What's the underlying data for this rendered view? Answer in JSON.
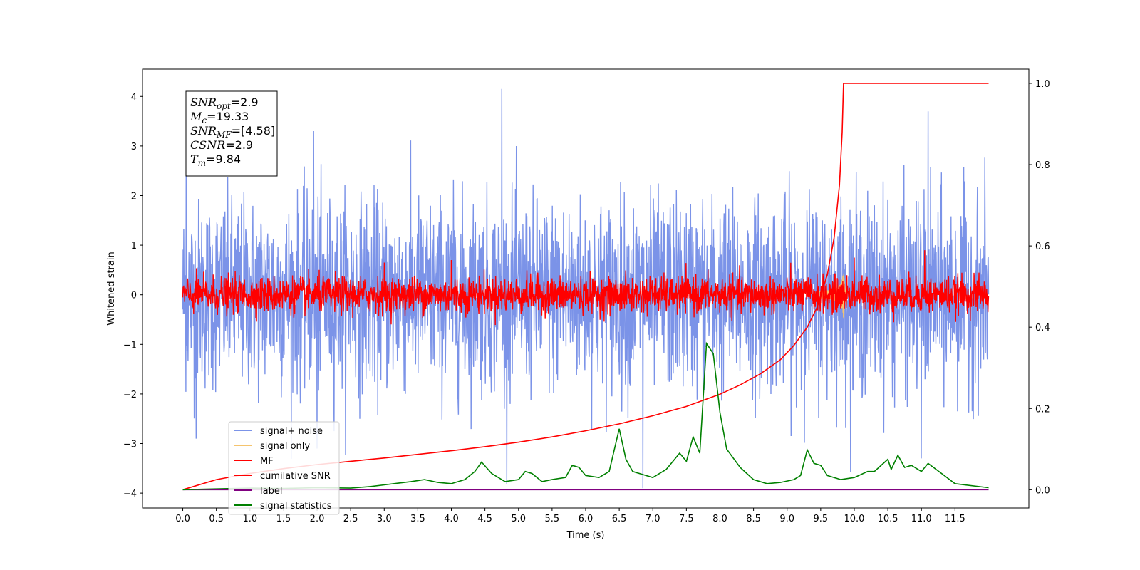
{
  "chart_data": {
    "type": "line",
    "xlabel": "Time (s)",
    "ylabel_left": "Whitened strain",
    "ylabel_right": "",
    "x_ticks": [
      "0.0",
      "0.5",
      "1.0",
      "1.5",
      "2.0",
      "2.5",
      "3.0",
      "3.5",
      "4.0",
      "4.5",
      "5.0",
      "5.5",
      "6.0",
      "6.5",
      "7.0",
      "7.5",
      "8.0",
      "8.5",
      "9.0",
      "9.5",
      "10.0",
      "10.5",
      "11.0",
      "11.5"
    ],
    "xlim": [
      -0.6,
      12.6
    ],
    "ylim_left": [
      -4.3,
      4.55
    ],
    "ylim_right": [
      -0.045,
      1.035
    ],
    "y_ticks_left": [
      4,
      3,
      2,
      1,
      0,
      -1,
      -2,
      -3,
      -4
    ],
    "y_ticks_right": [
      "1.0",
      "0.8",
      "0.6",
      "0.4",
      "0.2",
      "0.0"
    ],
    "legend_position": "lower-left",
    "annotation": [
      {
        "name": "SNR",
        "sub": "opt",
        "value": "=2.9"
      },
      {
        "name": "M",
        "sub": "c",
        "value": "=19.33"
      },
      {
        "name": "SNR",
        "sub": "MF",
        "value": "=[4.58]"
      },
      {
        "name": "CSNR",
        "sub": "",
        "value": "=2.9"
      },
      {
        "name": "T",
        "sub": "m",
        "value": "=9.84"
      }
    ],
    "series": [
      {
        "name": "signal+ noise",
        "color": "#7b93e8",
        "style": "noise",
        "amplitude_std": 0.95,
        "x_range": [
          0,
          12
        ],
        "spikes": [
          [
            4.75,
            4.15
          ],
          [
            11.1,
            3.7
          ],
          [
            1.95,
            3.3
          ],
          [
            0.05,
            3.15
          ],
          [
            2.0,
            -3.1
          ],
          [
            11.0,
            -3.3
          ],
          [
            6.85,
            -3.9
          ],
          [
            0.2,
            -2.9
          ]
        ]
      },
      {
        "name": "signal only",
        "color": "#f5c46e",
        "style": "chirp",
        "x_range": [
          0,
          12
        ],
        "merger_time": 9.84
      },
      {
        "name": "MF",
        "color": "#ff0000",
        "style": "noise_small",
        "amplitude_std": 0.18,
        "x_range": [
          0,
          12
        ],
        "spikes": [
          [
            10.0,
            0.75
          ],
          [
            11.05,
            0.9
          ],
          [
            3.0,
            0.65
          ],
          [
            4.0,
            0.7
          ]
        ]
      },
      {
        "name": "cumilative SNR",
        "color": "#ff0000",
        "axis": "right",
        "x": [
          0.0,
          0.5,
          1.0,
          1.5,
          2.0,
          2.5,
          3.0,
          3.5,
          4.0,
          4.5,
          5.0,
          5.5,
          6.0,
          6.5,
          7.0,
          7.5,
          8.0,
          8.3,
          8.6,
          8.9,
          9.1,
          9.3,
          9.45,
          9.6,
          9.7,
          9.78,
          9.82,
          9.84,
          12.0
        ],
        "y": [
          0.0,
          0.025,
          0.04,
          0.052,
          0.062,
          0.07,
          0.078,
          0.087,
          0.096,
          0.106,
          0.117,
          0.13,
          0.145,
          0.162,
          0.182,
          0.205,
          0.235,
          0.258,
          0.285,
          0.32,
          0.355,
          0.4,
          0.45,
          0.53,
          0.62,
          0.75,
          0.88,
          1.0,
          1.0
        ]
      },
      {
        "name": "label",
        "color": "#800080",
        "axis": "right",
        "x": [
          0.0,
          12.0
        ],
        "y": [
          0.0,
          0.0
        ]
      },
      {
        "name": "signal statistics",
        "color": "#008000",
        "axis": "right",
        "x": [
          0.0,
          0.5,
          1.0,
          1.5,
          2.0,
          2.5,
          2.8,
          3.0,
          3.2,
          3.4,
          3.6,
          3.8,
          4.0,
          4.2,
          4.35,
          4.45,
          4.6,
          4.8,
          5.0,
          5.1,
          5.2,
          5.35,
          5.5,
          5.7,
          5.8,
          5.9,
          6.0,
          6.2,
          6.35,
          6.5,
          6.6,
          6.7,
          6.9,
          7.0,
          7.2,
          7.4,
          7.5,
          7.6,
          7.7,
          7.8,
          7.9,
          8.0,
          8.1,
          8.3,
          8.5,
          8.7,
          8.9,
          9.1,
          9.2,
          9.3,
          9.4,
          9.5,
          9.6,
          9.8,
          10.0,
          10.2,
          10.3,
          10.5,
          10.55,
          10.65,
          10.75,
          10.85,
          11.0,
          11.1,
          11.3,
          11.5,
          12.0
        ],
        "y": [
          0.0,
          0.002,
          0.004,
          0.003,
          0.005,
          0.004,
          0.008,
          0.012,
          0.016,
          0.02,
          0.025,
          0.018,
          0.015,
          0.025,
          0.045,
          0.068,
          0.04,
          0.02,
          0.025,
          0.045,
          0.04,
          0.02,
          0.025,
          0.03,
          0.06,
          0.055,
          0.035,
          0.03,
          0.045,
          0.15,
          0.075,
          0.045,
          0.035,
          0.03,
          0.05,
          0.09,
          0.07,
          0.13,
          0.09,
          0.36,
          0.335,
          0.19,
          0.1,
          0.055,
          0.025,
          0.015,
          0.018,
          0.025,
          0.035,
          0.098,
          0.065,
          0.06,
          0.035,
          0.025,
          0.03,
          0.045,
          0.045,
          0.075,
          0.05,
          0.085,
          0.055,
          0.06,
          0.045,
          0.065,
          0.04,
          0.015,
          0.005
        ]
      }
    ]
  }
}
